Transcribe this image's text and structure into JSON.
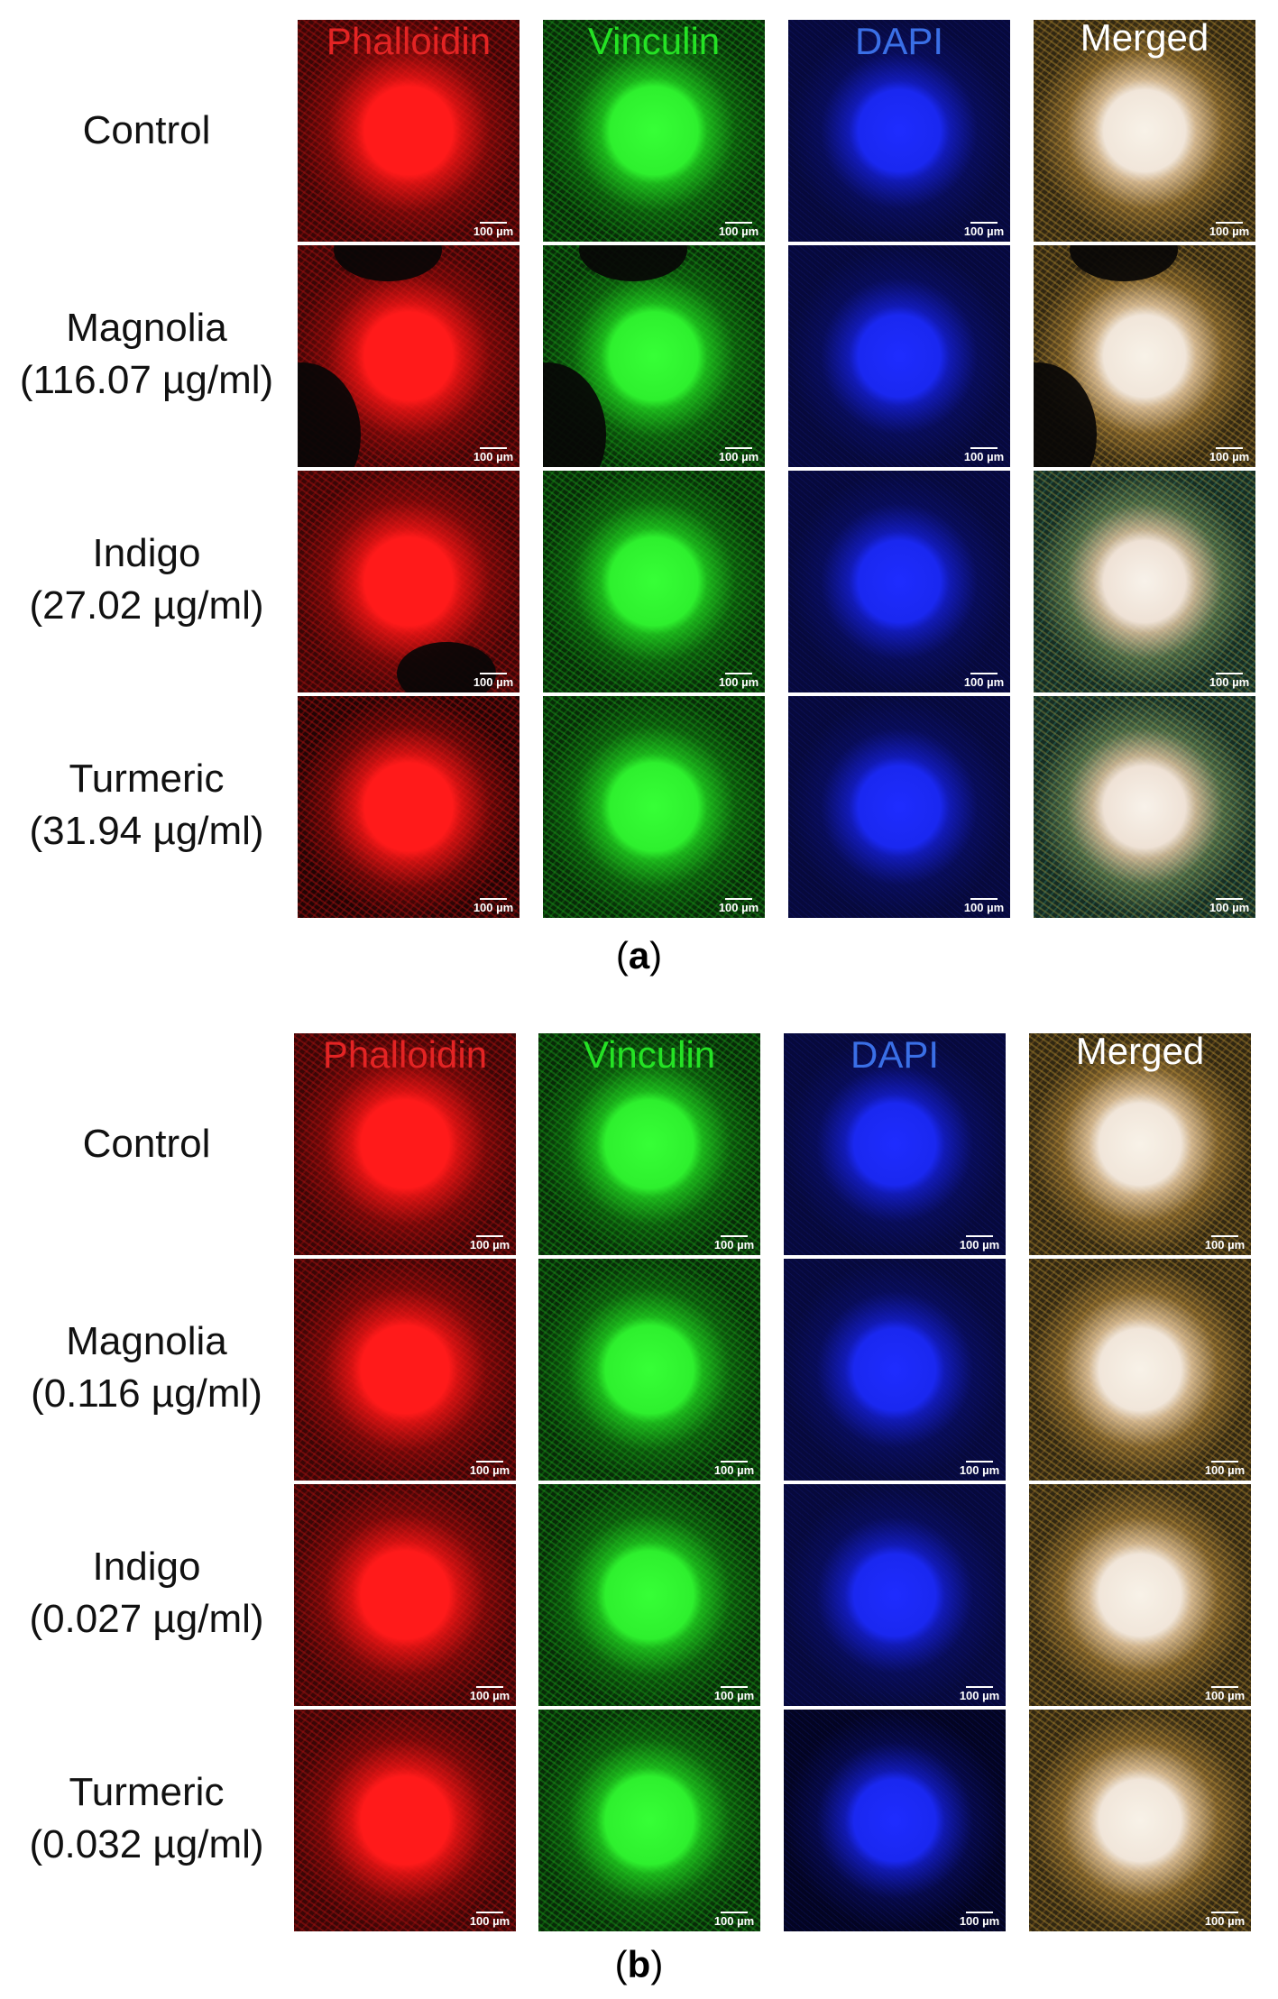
{
  "panels": [
    {
      "letter": "a",
      "columns": [
        "Phalloidin",
        "Vinculin",
        "DAPI",
        "Merged"
      ],
      "rows": [
        {
          "name": "Control",
          "concentration": ""
        },
        {
          "name": "Magnolia",
          "concentration": "(116.07 µg/ml)"
        },
        {
          "name": "Indigo",
          "concentration": "(27.02 µg/ml)"
        },
        {
          "name": "Turmeric",
          "concentration": "(31.94 µg/ml)"
        }
      ]
    },
    {
      "letter": "b",
      "columns": [
        "Phalloidin",
        "Vinculin",
        "DAPI",
        "Merged"
      ],
      "rows": [
        {
          "name": "Control",
          "concentration": ""
        },
        {
          "name": "Magnolia",
          "concentration": "(0.116 µg/ml)"
        },
        {
          "name": "Indigo",
          "concentration": "(0.027 µg/ml)"
        },
        {
          "name": "Turmeric",
          "concentration": "(0.032 µg/ml)"
        }
      ]
    }
  ],
  "scale_bar_label": "100 µm",
  "channel_colors": {
    "Phalloidin": "#e32424",
    "Vinculin": "#25e225",
    "DAPI": "#3a6fe6",
    "Merged": "#ffffff"
  }
}
